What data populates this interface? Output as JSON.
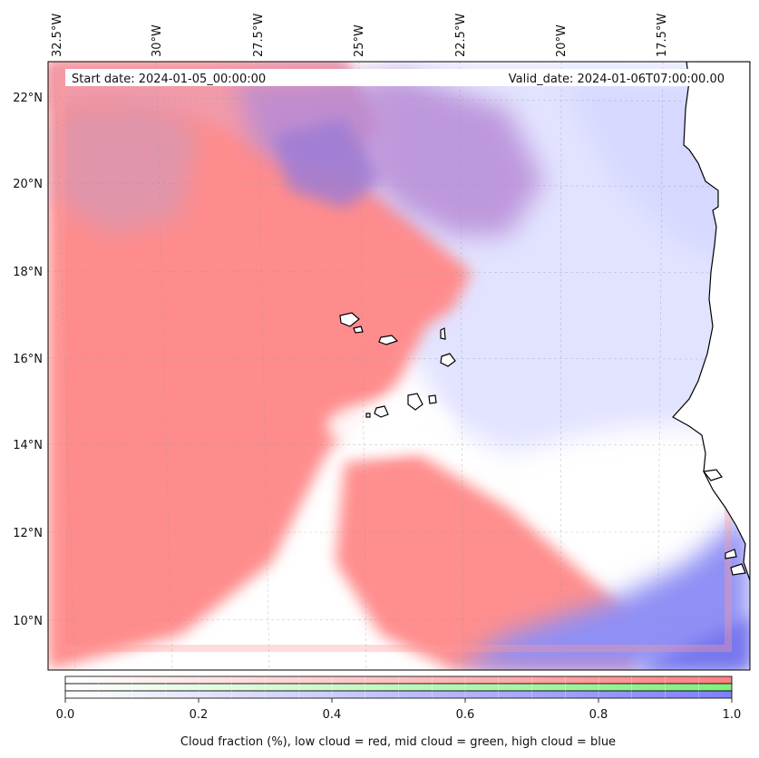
{
  "header": {
    "start_date": "Start date: 2024-01-05_00:00:00",
    "valid_date": "Valid_date: 2024-01-06T07:00:00.00"
  },
  "axes": {
    "lon_labels": [
      "32.5°W",
      "30°W",
      "27.5°W",
      "25°W",
      "22.5°W",
      "20°W",
      "17.5°W"
    ],
    "lat_labels": [
      "22°N",
      "20°N",
      "18°N",
      "16°N",
      "14°N",
      "12°N",
      "10°N"
    ]
  },
  "colorbar": {
    "ticks": [
      "0.0",
      "0.2",
      "0.4",
      "0.6",
      "0.8",
      "1.0"
    ],
    "label": "Cloud fraction (%), low cloud = red, mid cloud = green, high cloud = blue",
    "colors": {
      "low": "#ff7f7f",
      "mid": "#7fef7f",
      "high": "#7f7fff"
    }
  }
}
